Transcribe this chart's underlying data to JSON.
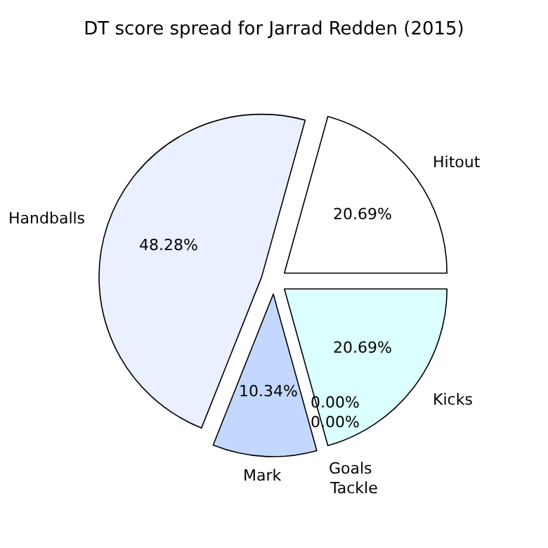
{
  "chart_data": {
    "type": "pie",
    "title": "DT score spread for Jarrad Redden (2015)",
    "categories": [
      "Hitout",
      "Handballs",
      "Mark",
      "Goals",
      "Tackle",
      "Kicks"
    ],
    "values": [
      20.69,
      48.28,
      10.34,
      0.0,
      0.0,
      20.69
    ],
    "colors": [
      "#ffffff",
      "#eaf0ff",
      "#c4d8ff",
      "#d0d0d0",
      "#d0d0d0",
      "#dbfffe"
    ],
    "value_labels": [
      "20.69%",
      "48.28%",
      "10.34%",
      "0.00%",
      "0.00%",
      "20.69%"
    ],
    "legend": false
  }
}
